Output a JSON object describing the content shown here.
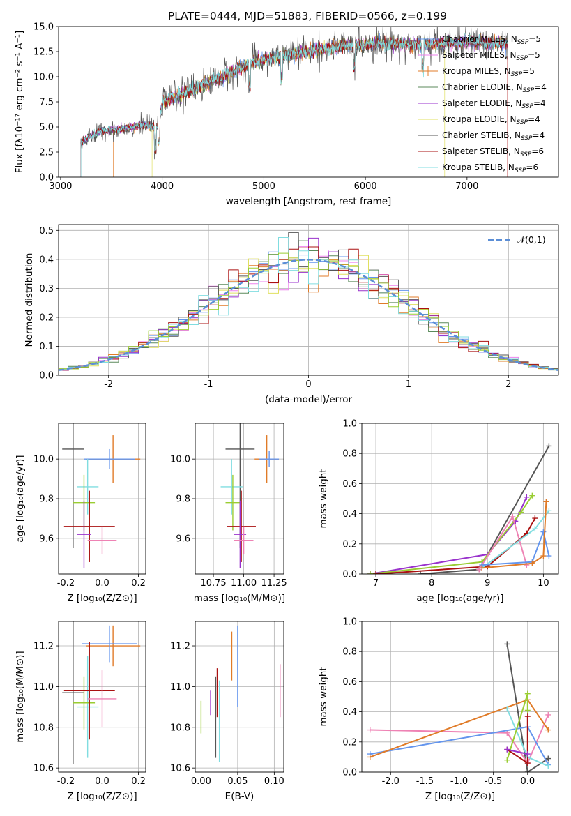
{
  "figure": {
    "title": "PLATE=0444, MJD=51883, FIBERID=0566, z=0.199"
  },
  "colors": {
    "chabrier_miles": "#6495ed",
    "salpeter_miles": "#ee82ee",
    "kroupa_miles": "#e07b28",
    "chabrier_elodie": "#5b8a5b",
    "salpeter_elodie": "#9932cc",
    "kroupa_elodie": "#e0e060",
    "chabrier_stelib": "#555555",
    "salpeter_stelib": "#aa1111",
    "kroupa_stelib": "#80dde0",
    "green": "#9acd32",
    "pink": "#ee82b4",
    "grid": "#b0b0b0"
  },
  "chart_data": [
    {
      "id": "spectrum",
      "type": "line",
      "xlabel": "wavelength [Angstrom, rest frame]",
      "ylabel": "Flux [fλ10⁻¹⁷ erg cm⁻² s⁻¹ A⁻¹]",
      "xlim": [
        2980,
        7900
      ],
      "ylim": [
        0,
        15
      ],
      "xticks": [
        3000,
        4000,
        5000,
        6000,
        7000
      ],
      "yticks": [
        0.0,
        2.5,
        5.0,
        7.5,
        10.0,
        12.5,
        15.0
      ],
      "grid": false,
      "legend_position": "top-right",
      "legend": [
        {
          "label": "Chabrier MILES, N",
          "sub": "SSP",
          "suffix": "=5",
          "color": "#6495ed"
        },
        {
          "label": "Salpeter MILES, N",
          "sub": "SSP",
          "suffix": "=5",
          "color": "#ee82ee"
        },
        {
          "label": "Kroupa MILES, N",
          "sub": "SSP",
          "suffix": "=5",
          "color": "#e07b28"
        },
        {
          "label": "Chabrier ELODIE, N",
          "sub": "SSP",
          "suffix": "=4",
          "color": "#5b8a5b"
        },
        {
          "label": "Salpeter ELODIE, N",
          "sub": "SSP",
          "suffix": "=4",
          "color": "#9932cc"
        },
        {
          "label": "Kroupa ELODIE, N",
          "sub": "SSP",
          "suffix": "=4",
          "color": "#e0e060"
        },
        {
          "label": "Chabrier STELIB, N",
          "sub": "SSP",
          "suffix": "=4",
          "color": "#555555"
        },
        {
          "label": "Salpeter STELIB, N",
          "sub": "SSP",
          "suffix": "=6",
          "color": "#aa1111"
        },
        {
          "label": "Kroupa STELIB, N",
          "sub": "SSP",
          "suffix": "=6",
          "color": "#80dde0"
        }
      ],
      "continuum": [
        [
          3200,
          3.5
        ],
        [
          3400,
          4.6
        ],
        [
          3600,
          4.8
        ],
        [
          3800,
          5.2
        ],
        [
          3950,
          4.9
        ],
        [
          4000,
          7.4
        ],
        [
          4200,
          8.3
        ],
        [
          4500,
          9.6
        ],
        [
          4800,
          11.0
        ],
        [
          5000,
          11.7
        ],
        [
          5300,
          12.3
        ],
        [
          5600,
          12.8
        ],
        [
          5900,
          13.2
        ],
        [
          6200,
          13.3
        ],
        [
          6600,
          13.2
        ],
        [
          7000,
          13.5
        ],
        [
          7400,
          13.3
        ]
      ]
    },
    {
      "id": "residuals",
      "type": "histogram",
      "xlabel": "(data-model)/error",
      "ylabel": "Normed distribution",
      "xlim": [
        -2.5,
        2.5
      ],
      "ylim": [
        0,
        0.52
      ],
      "xticks": [
        -2,
        -1,
        0,
        1,
        2
      ],
      "yticks": [
        0.0,
        0.1,
        0.2,
        0.3,
        0.4,
        0.5
      ],
      "grid": true,
      "legend": "𝒩(0,1)",
      "legend_position": "top-right"
    },
    {
      "id": "age_vs_Z",
      "type": "errorbar",
      "xlabel": "Z [log₁₀(Z/Z⊙)]",
      "ylabel": "age  [log₁₀(age/yr)]",
      "xlim": [
        -0.24,
        0.24
      ],
      "ylim": [
        9.42,
        10.18
      ],
      "xticks": [
        -0.2,
        0.0,
        0.2
      ],
      "yticks": [
        9.6,
        9.8,
        10.0
      ],
      "grid": true,
      "points": [
        {
          "x": 0.06,
          "y": 10.0,
          "xerr": 0.15,
          "yerr": 0.12,
          "c": "#e07b28"
        },
        {
          "x": 0.04,
          "y": 10.0,
          "xerr": 0.14,
          "yerr": 0.05,
          "c": "#6495ed"
        },
        {
          "x": -0.16,
          "y": 10.05,
          "xerr": 0.06,
          "yerr": 0.5,
          "c": "#555555"
        },
        {
          "x": -0.08,
          "y": 9.86,
          "xerr": 0.06,
          "yerr": 0.14,
          "c": "#80dde0"
        },
        {
          "x": -0.1,
          "y": 9.78,
          "xerr": 0.06,
          "yerr": 0.14,
          "c": "#9acd32"
        },
        {
          "x": -0.07,
          "y": 9.66,
          "xerr": 0.14,
          "yerr": 0.18,
          "c": "#aa1111"
        },
        {
          "x": -0.1,
          "y": 9.62,
          "xerr": 0.04,
          "yerr": 0.17,
          "c": "#9932cc"
        },
        {
          "x": 0.0,
          "y": 9.59,
          "xerr": 0.08,
          "yerr": 0.07,
          "c": "#ee82b4"
        }
      ]
    },
    {
      "id": "age_vs_mass",
      "type": "errorbar",
      "xlabel": "mass [log₁₀(M/M⊙)]",
      "ylabel": "",
      "xlim": [
        10.6,
        11.33
      ],
      "ylim": [
        9.42,
        10.18
      ],
      "xticks": [
        10.75,
        11.0,
        11.25
      ],
      "yticks": [
        9.6,
        9.8,
        10.0
      ],
      "grid": true,
      "points": [
        {
          "x": 11.19,
          "y": 10.0,
          "xerr": 0.1,
          "yerr": 0.12,
          "c": "#e07b28"
        },
        {
          "x": 11.21,
          "y": 10.0,
          "xerr": 0.08,
          "yerr": 0.04,
          "c": "#6495ed"
        },
        {
          "x": 10.97,
          "y": 10.05,
          "xerr": 0.12,
          "yerr": 0.5,
          "c": "#555555"
        },
        {
          "x": 10.9,
          "y": 9.86,
          "xerr": 0.09,
          "yerr": 0.14,
          "c": "#80dde0"
        },
        {
          "x": 10.91,
          "y": 9.78,
          "xerr": 0.06,
          "yerr": 0.14,
          "c": "#9acd32"
        },
        {
          "x": 10.98,
          "y": 9.66,
          "xerr": 0.12,
          "yerr": 0.18,
          "c": "#aa1111"
        },
        {
          "x": 10.97,
          "y": 9.62,
          "xerr": 0.05,
          "yerr": 0.17,
          "c": "#9932cc"
        },
        {
          "x": 11.0,
          "y": 9.59,
          "xerr": 0.08,
          "yerr": 0.07,
          "c": "#ee82b4"
        }
      ]
    },
    {
      "id": "weight_vs_age",
      "type": "line",
      "xlabel": "age  [log₁₀(age/yr)]",
      "ylabel": "mass weight",
      "xlim": [
        6.75,
        10.27
      ],
      "ylim": [
        0,
        1.0
      ],
      "xticks": [
        7,
        8,
        9,
        10
      ],
      "yticks": [
        0.0,
        0.2,
        0.4,
        0.6,
        0.8,
        1.0
      ],
      "grid": true,
      "series": [
        {
          "c": "#555555",
          "pts": [
            [
              7.8,
              0.0
            ],
            [
              8.85,
              0.03
            ],
            [
              10.1,
              0.85
            ]
          ]
        },
        {
          "c": "#9932cc",
          "pts": [
            [
              6.9,
              0.0
            ],
            [
              9.0,
              0.13
            ],
            [
              9.5,
              0.35
            ],
            [
              9.7,
              0.51
            ]
          ]
        },
        {
          "c": "#9acd32",
          "pts": [
            [
              6.9,
              0.0
            ],
            [
              8.9,
              0.08
            ],
            [
              9.6,
              0.41
            ],
            [
              9.8,
              0.52
            ]
          ]
        },
        {
          "c": "#aa1111",
          "pts": [
            [
              7.0,
              0.0
            ],
            [
              9.0,
              0.05
            ],
            [
              9.7,
              0.27
            ],
            [
              9.85,
              0.37
            ]
          ]
        },
        {
          "c": "#ee82b4",
          "pts": [
            [
              8.85,
              0.03
            ],
            [
              9.45,
              0.38
            ],
            [
              9.7,
              0.06
            ]
          ]
        },
        {
          "c": "#80dde0",
          "pts": [
            [
              8.9,
              0.04
            ],
            [
              9.85,
              0.3
            ],
            [
              10.1,
              0.42
            ]
          ]
        },
        {
          "c": "#6495ed",
          "pts": [
            [
              8.9,
              0.06
            ],
            [
              9.8,
              0.08
            ],
            [
              10.0,
              0.28
            ],
            [
              10.1,
              0.12
            ]
          ]
        },
        {
          "c": "#e07b28",
          "pts": [
            [
              8.9,
              0.04
            ],
            [
              9.8,
              0.07
            ],
            [
              10.0,
              0.12
            ],
            [
              10.05,
              0.48
            ]
          ]
        }
      ]
    },
    {
      "id": "mass_vs_Z",
      "type": "errorbar",
      "xlabel": "Z [log₁₀(Z/Z⊙)]",
      "ylabel": "mass [log₁₀(M/M⊙)]",
      "xlim": [
        -0.24,
        0.24
      ],
      "ylim": [
        10.58,
        11.32
      ],
      "xticks": [
        -0.2,
        0.0,
        0.2
      ],
      "yticks": [
        10.6,
        10.8,
        11.0,
        11.2
      ],
      "grid": true,
      "points": [
        {
          "x": 0.06,
          "y": 11.2,
          "xerr": 0.15,
          "yerr": 0.1,
          "c": "#e07b28"
        },
        {
          "x": 0.04,
          "y": 11.21,
          "xerr": 0.15,
          "yerr": 0.09,
          "c": "#6495ed"
        },
        {
          "x": -0.16,
          "y": 10.97,
          "xerr": 0.06,
          "yerr": 0.35,
          "c": "#555555"
        },
        {
          "x": -0.08,
          "y": 10.9,
          "xerr": 0.06,
          "yerr": 0.25,
          "c": "#80dde0"
        },
        {
          "x": -0.1,
          "y": 10.92,
          "xerr": 0.06,
          "yerr": 0.13,
          "c": "#9acd32"
        },
        {
          "x": -0.07,
          "y": 10.98,
          "xerr": 0.14,
          "yerr": 0.24,
          "c": "#aa1111"
        },
        {
          "x": 0.0,
          "y": 10.94,
          "xerr": 0.08,
          "yerr": 0.14,
          "c": "#ee82b4"
        }
      ]
    },
    {
      "id": "mass_vs_ebv",
      "type": "errorbar",
      "xlabel": "E(B-V)",
      "ylabel": "",
      "xlim": [
        -0.008,
        0.113
      ],
      "ylim": [
        10.58,
        11.32
      ],
      "xticks": [
        0.0,
        0.05,
        0.1
      ],
      "yticks": [
        10.6,
        10.8,
        11.0,
        11.2
      ],
      "grid": true,
      "points": [
        {
          "x": 0.0,
          "y": 10.85,
          "xerr": 0,
          "yerr": 0.08,
          "c": "#9acd32"
        },
        {
          "x": 0.013,
          "y": 10.92,
          "xerr": 0,
          "yerr": 0.06,
          "c": "#9932cc"
        },
        {
          "x": 0.02,
          "y": 10.85,
          "xerr": 0,
          "yerr": 0.2,
          "c": "#555555"
        },
        {
          "x": 0.025,
          "y": 10.83,
          "xerr": 0,
          "yerr": 0.2,
          "c": "#80dde0"
        },
        {
          "x": 0.022,
          "y": 10.97,
          "xerr": 0,
          "yerr": 0.12,
          "c": "#aa1111"
        },
        {
          "x": 0.042,
          "y": 11.15,
          "xerr": 0,
          "yerr": 0.12,
          "c": "#e07b28"
        },
        {
          "x": 0.05,
          "y": 11.1,
          "xerr": 0,
          "yerr": 0.2,
          "c": "#6495ed"
        },
        {
          "x": 0.108,
          "y": 10.98,
          "xerr": 0,
          "yerr": 0.13,
          "c": "#ee82b4"
        }
      ]
    },
    {
      "id": "weight_vs_Z",
      "type": "line",
      "xlabel": "Z [log₁₀(Z/Z⊙)]",
      "ylabel": "mass weight",
      "xlim": [
        -2.42,
        0.45
      ],
      "ylim": [
        0,
        1.0
      ],
      "xticks": [
        -2.0,
        -1.5,
        -1.0,
        -0.5,
        0.0
      ],
      "yticks": [
        0.0,
        0.2,
        0.4,
        0.6,
        0.8,
        1.0
      ],
      "grid": true,
      "series": [
        {
          "c": "#555555",
          "pts": [
            [
              -0.3,
              0.85
            ],
            [
              0.0,
              0.0
            ],
            [
              0.3,
              0.09
            ]
          ]
        },
        {
          "c": "#ee82b4",
          "pts": [
            [
              -2.3,
              0.28
            ],
            [
              -0.3,
              0.26
            ],
            [
              0.0,
              0.06
            ],
            [
              0.3,
              0.38
            ]
          ]
        },
        {
          "c": "#6495ed",
          "pts": [
            [
              -2.3,
              0.12
            ],
            [
              0.0,
              0.3
            ],
            [
              0.3,
              0.05
            ]
          ]
        },
        {
          "c": "#e07b28",
          "pts": [
            [
              -2.3,
              0.1
            ],
            [
              0.0,
              0.48
            ],
            [
              0.3,
              0.28
            ]
          ]
        },
        {
          "c": "#80dde0",
          "pts": [
            [
              -0.3,
              0.42
            ],
            [
              0.0,
              0.1
            ],
            [
              0.3,
              0.04
            ]
          ]
        },
        {
          "c": "#9acd32",
          "pts": [
            [
              -0.3,
              0.08
            ],
            [
              0.0,
              0.52
            ],
            [
              0.0,
              0.41
            ]
          ]
        },
        {
          "c": "#aa1111",
          "pts": [
            [
              -0.3,
              0.15
            ],
            [
              0.0,
              0.06
            ],
            [
              0.0,
              0.37
            ]
          ]
        },
        {
          "c": "#9932cc",
          "pts": [
            [
              -0.3,
              0.15
            ],
            [
              0.0,
              0.12
            ]
          ]
        }
      ]
    }
  ]
}
